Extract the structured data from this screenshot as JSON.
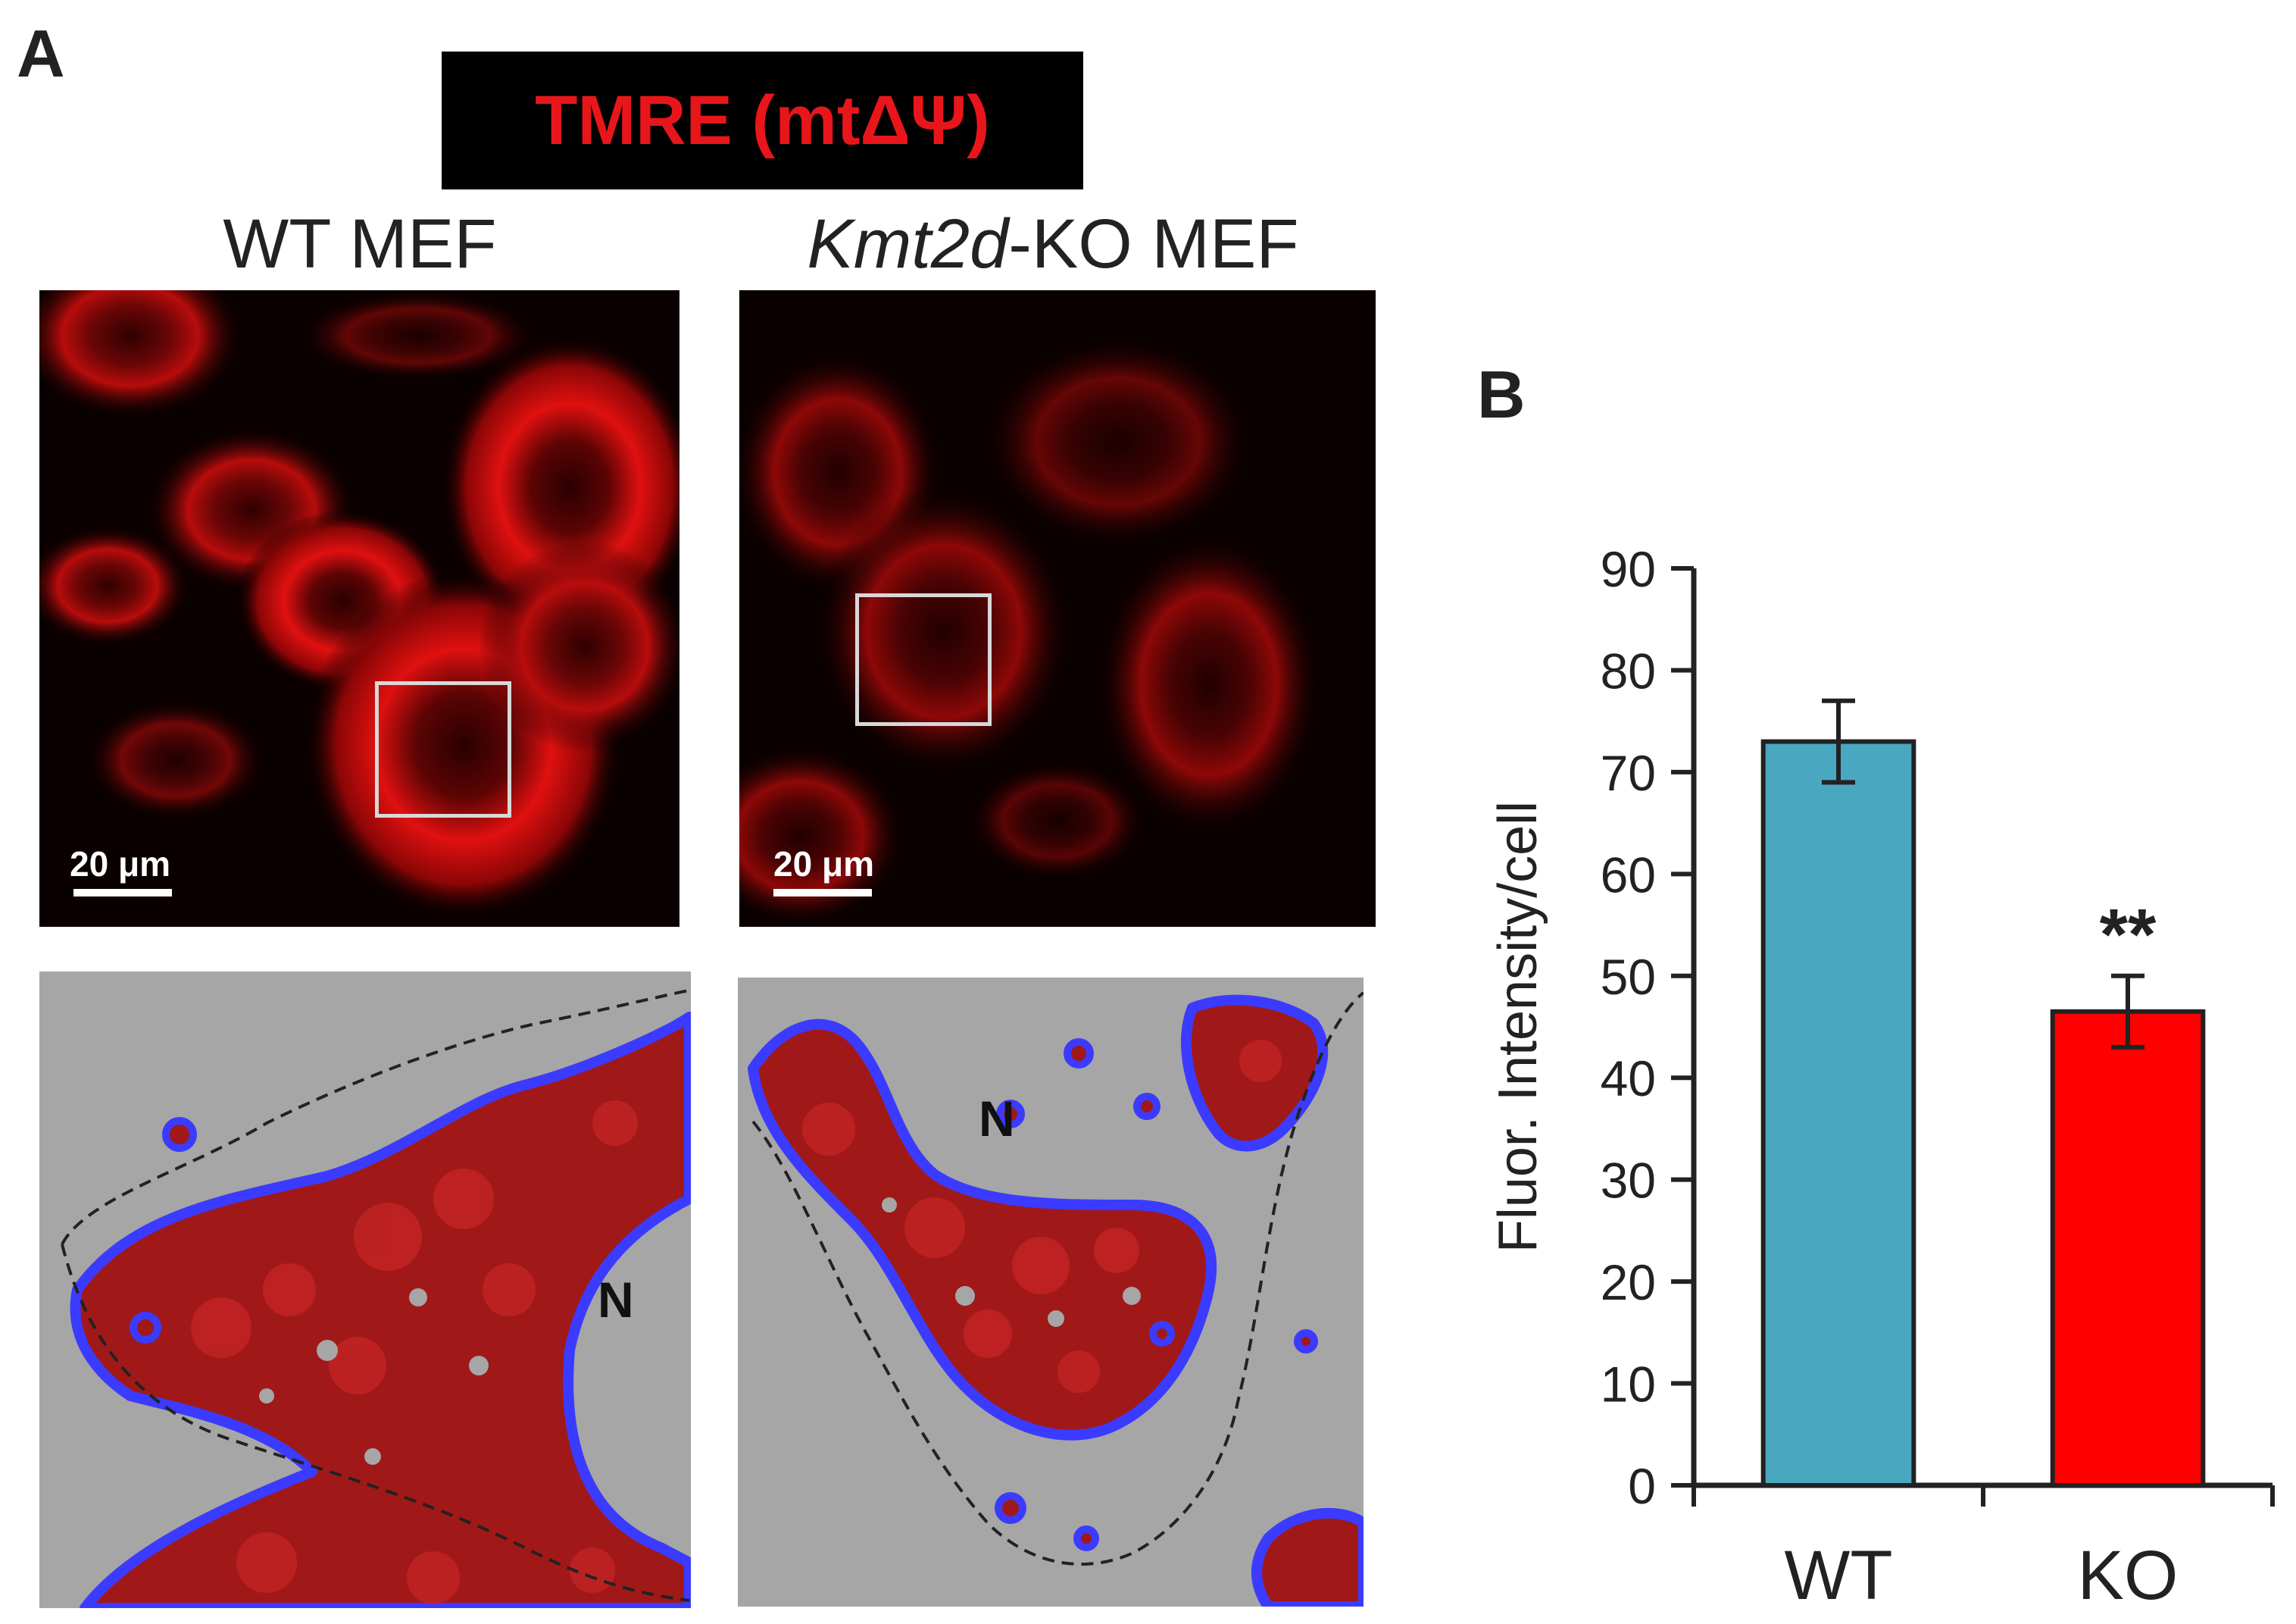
{
  "panel_a": {
    "letter": "A",
    "stain_title": "TMRE (mtΔΨ)",
    "wt_label": "WT MEF",
    "ko_label_italic": "Kmt2d",
    "ko_label_rest": "-KO MEF",
    "scalebar_text": "20 μm",
    "nucleus_label": "N"
  },
  "panel_b": {
    "letter": "B"
  },
  "chart_data": {
    "type": "bar",
    "title": "",
    "xlabel": "",
    "ylabel": "Fluor. Intensity/cell",
    "categories": [
      "WT",
      "KO"
    ],
    "values": [
      73,
      46.5
    ],
    "errors": [
      4,
      3.5
    ],
    "colors": [
      "#4aa7c0",
      "#ff0000"
    ],
    "annotations": [
      "",
      "**"
    ],
    "ylim": [
      0,
      90
    ],
    "yticks": [
      0,
      10,
      20,
      30,
      40,
      50,
      60,
      70,
      80,
      90
    ],
    "grid": false
  }
}
